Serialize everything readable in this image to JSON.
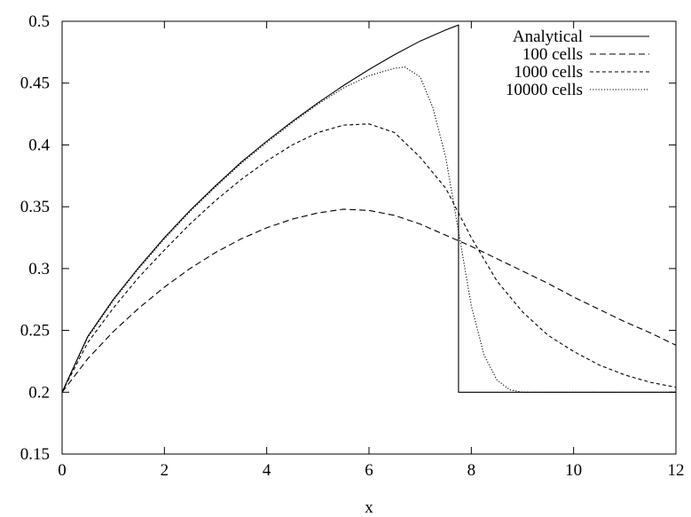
{
  "chart_data": {
    "type": "line",
    "title": "",
    "xlabel": "x",
    "ylabel": "",
    "xlim": [
      0,
      12
    ],
    "ylim": [
      0.15,
      0.5
    ],
    "xticks": [
      0,
      2,
      4,
      6,
      8,
      10,
      12
    ],
    "xtick_labels": [
      "0",
      "2",
      "4",
      "6",
      "8",
      "10",
      "12"
    ],
    "yticks": [
      0.15,
      0.2,
      0.25,
      0.3,
      0.35,
      0.4,
      0.45,
      0.5
    ],
    "ytick_labels": [
      "0.15",
      "0.2",
      "0.25",
      "0.3",
      "0.35",
      "0.4",
      "0.45",
      "0.5"
    ],
    "grid": false,
    "legend_position": "top-right",
    "series": [
      {
        "name": "Analytical",
        "style": "solid",
        "x": [
          0,
          0.5,
          1,
          1.5,
          2,
          2.5,
          3,
          3.5,
          4,
          4.5,
          5,
          5.5,
          6,
          6.5,
          7,
          7.5,
          7.75,
          7.75,
          8,
          9,
          10,
          11,
          12
        ],
        "y": [
          0.2,
          0.245,
          0.275,
          0.301,
          0.325,
          0.347,
          0.367,
          0.386,
          0.403,
          0.419,
          0.434,
          0.448,
          0.461,
          0.473,
          0.484,
          0.493,
          0.497,
          0.2,
          0.2,
          0.2,
          0.2,
          0.2,
          0.2
        ]
      },
      {
        "name": "100 cells",
        "style": "dashed",
        "x": [
          0,
          0.5,
          1,
          1.5,
          2,
          2.5,
          3,
          3.5,
          4,
          4.5,
          5,
          5.5,
          6,
          6.5,
          7,
          7.5,
          8,
          8.5,
          9,
          9.5,
          10,
          10.5,
          11,
          11.5,
          12
        ],
        "y": [
          0.2,
          0.227,
          0.249,
          0.268,
          0.285,
          0.3,
          0.313,
          0.324,
          0.333,
          0.34,
          0.345,
          0.348,
          0.347,
          0.343,
          0.336,
          0.327,
          0.318,
          0.308,
          0.298,
          0.288,
          0.277,
          0.267,
          0.257,
          0.248,
          0.238
        ]
      },
      {
        "name": "1000 cells",
        "style": "short-dashed",
        "x": [
          0,
          0.5,
          1,
          1.5,
          2,
          2.5,
          3,
          3.5,
          4,
          4.5,
          5,
          5.5,
          6,
          6.5,
          7,
          7.5,
          8,
          8.5,
          9,
          9.5,
          10,
          10.5,
          11,
          11.5,
          12
        ],
        "y": [
          0.2,
          0.24,
          0.268,
          0.293,
          0.315,
          0.336,
          0.355,
          0.372,
          0.387,
          0.4,
          0.41,
          0.416,
          0.417,
          0.41,
          0.39,
          0.365,
          0.325,
          0.29,
          0.265,
          0.246,
          0.233,
          0.222,
          0.214,
          0.208,
          0.204
        ]
      },
      {
        "name": "10000 cells",
        "style": "dotted",
        "x": [
          0,
          0.5,
          1,
          1.5,
          2,
          2.5,
          3,
          3.5,
          4,
          4.5,
          5,
          5.5,
          6,
          6.5,
          6.7,
          7,
          7.25,
          7.5,
          7.75,
          8,
          8.25,
          8.5,
          8.75,
          9,
          9.5,
          10,
          11,
          12
        ],
        "y": [
          0.2,
          0.244,
          0.274,
          0.3,
          0.324,
          0.346,
          0.366,
          0.385,
          0.402,
          0.418,
          0.433,
          0.446,
          0.456,
          0.462,
          0.463,
          0.455,
          0.43,
          0.39,
          0.33,
          0.27,
          0.23,
          0.21,
          0.202,
          0.2,
          0.2,
          0.2,
          0.2,
          0.2
        ]
      }
    ]
  }
}
